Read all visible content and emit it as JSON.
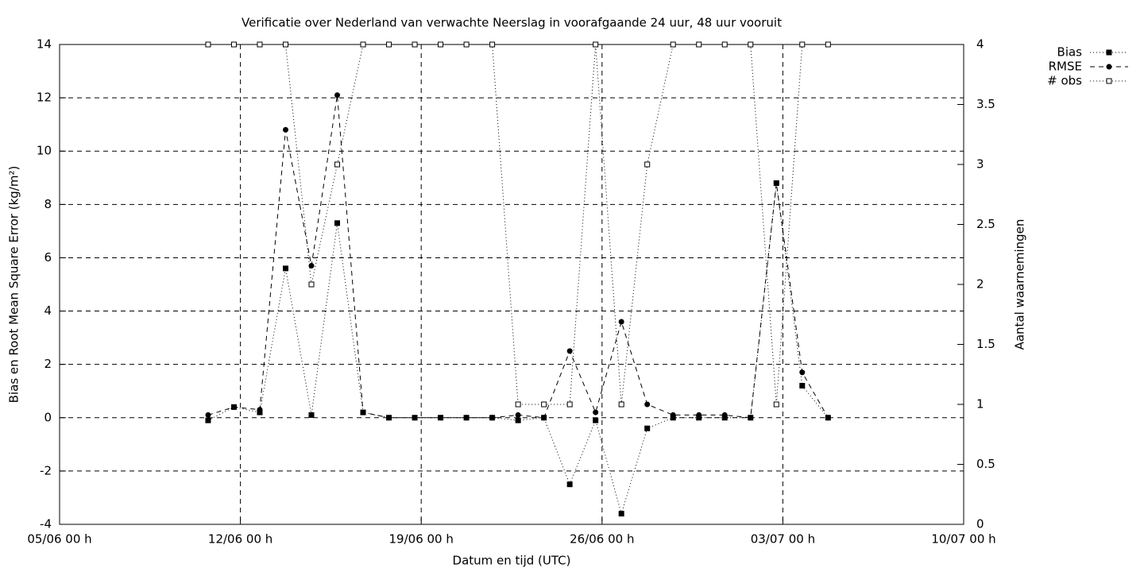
{
  "chart_data": {
    "type": "line",
    "title": "Verificatie over Nederland van verwachte Neerslag in voorafgaande 24 uur, 48 uur vooruit",
    "xlabel": "Datum en tijd (UTC)",
    "ylabel": "Bias en Root Mean Square Error (kg/m²)",
    "y2label": "Aantal waarnemingen",
    "x": [
      "10/06 18 h",
      "11/06 18 h",
      "12/06 18 h",
      "13/06 18 h",
      "14/06 18 h",
      "15/06 18 h",
      "16/06 18 h",
      "17/06 18 h",
      "18/06 18 h",
      "19/06 18 h",
      "20/06 18 h",
      "21/06 18 h",
      "22/06 18 h",
      "23/06 18 h",
      "24/06 18 h",
      "25/06 18 h",
      "26/06 18 h",
      "27/06 18 h",
      "28/06 18 h",
      "29/06 18 h",
      "30/06 18 h",
      "01/07 18 h",
      "02/07 18 h",
      "03/07 18 h",
      "04/07 18 h"
    ],
    "series": [
      {
        "name": "Bias",
        "color": "#000000",
        "line": "dotted",
        "marker": "filled-square",
        "values": [
          -0.1,
          0.4,
          0.2,
          5.6,
          0.1,
          7.3,
          0.2,
          0,
          0,
          0,
          0,
          0,
          -0.1,
          0,
          -2.5,
          -0.1,
          -3.6,
          -0.4,
          0,
          0,
          0,
          0,
          8.8,
          1.2,
          0
        ]
      },
      {
        "name": "RMSE",
        "color": "#000000",
        "line": "dashed",
        "marker": "filled-circle",
        "values": [
          0.1,
          0.4,
          0.3,
          10.8,
          5.7,
          12.1,
          0.2,
          0,
          0,
          0,
          0,
          0,
          0.1,
          0,
          2.5,
          0.2,
          3.6,
          0.5,
          0.1,
          0.1,
          0.1,
          0,
          8.8,
          1.7,
          0
        ]
      },
      {
        "name": "# obs",
        "color": "#000000",
        "line": "dotted",
        "marker": "open-square",
        "axis": "y2",
        "values": [
          4,
          4,
          4,
          4,
          2,
          3,
          4,
          4,
          4,
          4,
          4,
          4,
          1,
          1,
          1,
          4,
          1,
          3,
          4,
          4,
          4,
          4,
          1,
          4,
          4
        ]
      }
    ],
    "xlim": [
      "05/06 00 h",
      "10/07 00 h"
    ],
    "xticks": [
      "05/06 00 h",
      "12/06 00 h",
      "19/06 00 h",
      "26/06 00 h",
      "03/07 00 h",
      "10/07 00 h"
    ],
    "ylim": [
      -4,
      14
    ],
    "yticks": [
      -4,
      -2,
      0,
      2,
      4,
      6,
      8,
      10,
      12,
      14
    ],
    "y2lim": [
      0,
      4
    ],
    "y2ticks": [
      0,
      0.5,
      1,
      1.5,
      2,
      2.5,
      3,
      3.5,
      4
    ],
    "grid": true,
    "legend": "outside-top-right"
  }
}
